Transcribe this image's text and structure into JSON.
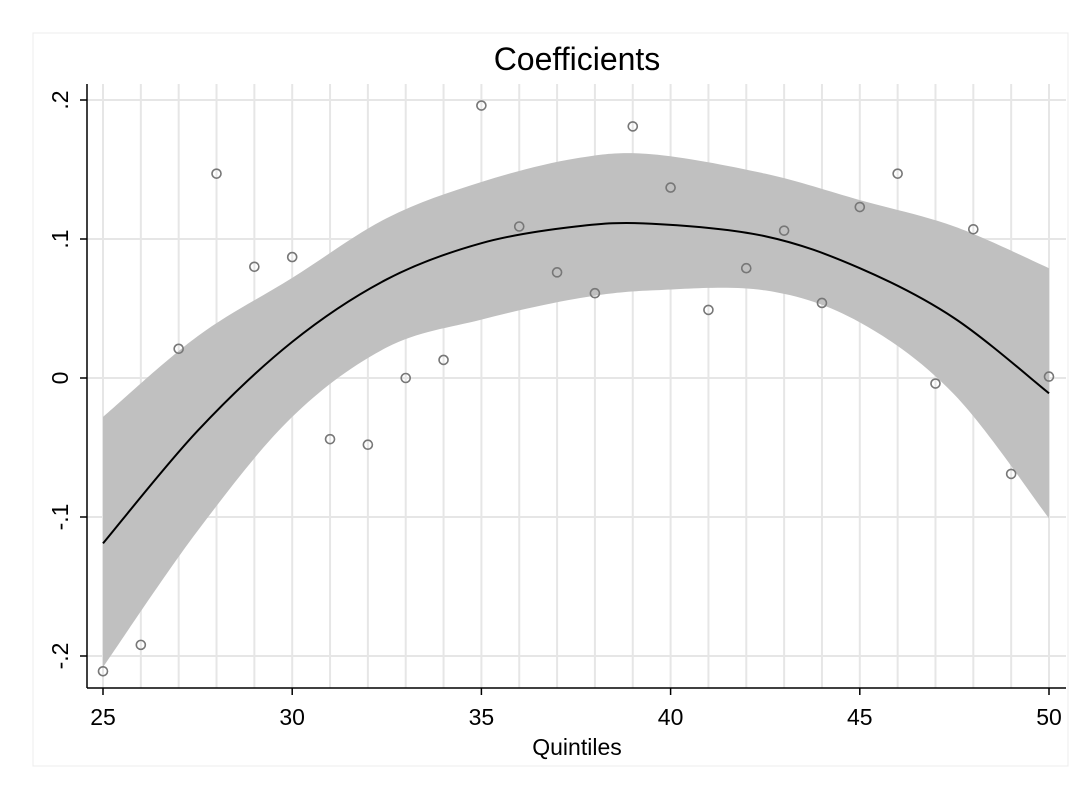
{
  "chart_data": {
    "type": "scatter",
    "title": "Coefficients",
    "xlabel": "Quintiles",
    "ylabel": "",
    "xlim": [
      25,
      50
    ],
    "ylim": [
      -0.2,
      0.2
    ],
    "x_ticks": [
      25,
      30,
      35,
      40,
      45,
      50
    ],
    "x_tick_labels": [
      "25",
      "30",
      "35",
      "40",
      "45",
      "50"
    ],
    "y_ticks": [
      -0.2,
      -0.1,
      0,
      0.1,
      0.2
    ],
    "y_tick_labels": [
      "-.2",
      "-.1",
      "0",
      ".1",
      ".2"
    ],
    "grid": true,
    "colors": {
      "band": "#c0c0c0",
      "line": "#000000",
      "marker": "#777777",
      "grid": "#e6e6e6"
    },
    "scatter": {
      "x": [
        25,
        26,
        27,
        28,
        29,
        30,
        31,
        32,
        33,
        34,
        35,
        36,
        37,
        38,
        39,
        40,
        41,
        42,
        43,
        44,
        45,
        46,
        47,
        48,
        49,
        50
      ],
      "y": [
        -0.211,
        -0.192,
        0.021,
        0.147,
        0.08,
        0.087,
        -0.044,
        -0.048,
        0.0,
        0.013,
        0.196,
        0.109,
        0.076,
        0.061,
        0.181,
        0.137,
        0.049,
        0.079,
        0.106,
        0.054,
        0.123,
        0.147,
        -0.004,
        0.107,
        -0.069,
        0.001
      ]
    },
    "fit": {
      "x": [
        25,
        27.5,
        30,
        32.5,
        35,
        37.5,
        39.5,
        42.5,
        45,
        47.5,
        50
      ],
      "y": [
        -0.119,
        -0.038,
        0.026,
        0.071,
        0.097,
        0.109,
        0.111,
        0.102,
        0.079,
        0.043,
        -0.011
      ]
    },
    "ci_upper": [
      -0.028,
      0.03,
      0.072,
      0.115,
      0.141,
      0.158,
      0.161,
      0.147,
      0.128,
      0.109,
      0.079
    ],
    "ci_lower": [
      -0.208,
      -0.11,
      -0.028,
      0.022,
      0.042,
      0.057,
      0.063,
      0.063,
      0.04,
      -0.012,
      -0.101
    ]
  }
}
